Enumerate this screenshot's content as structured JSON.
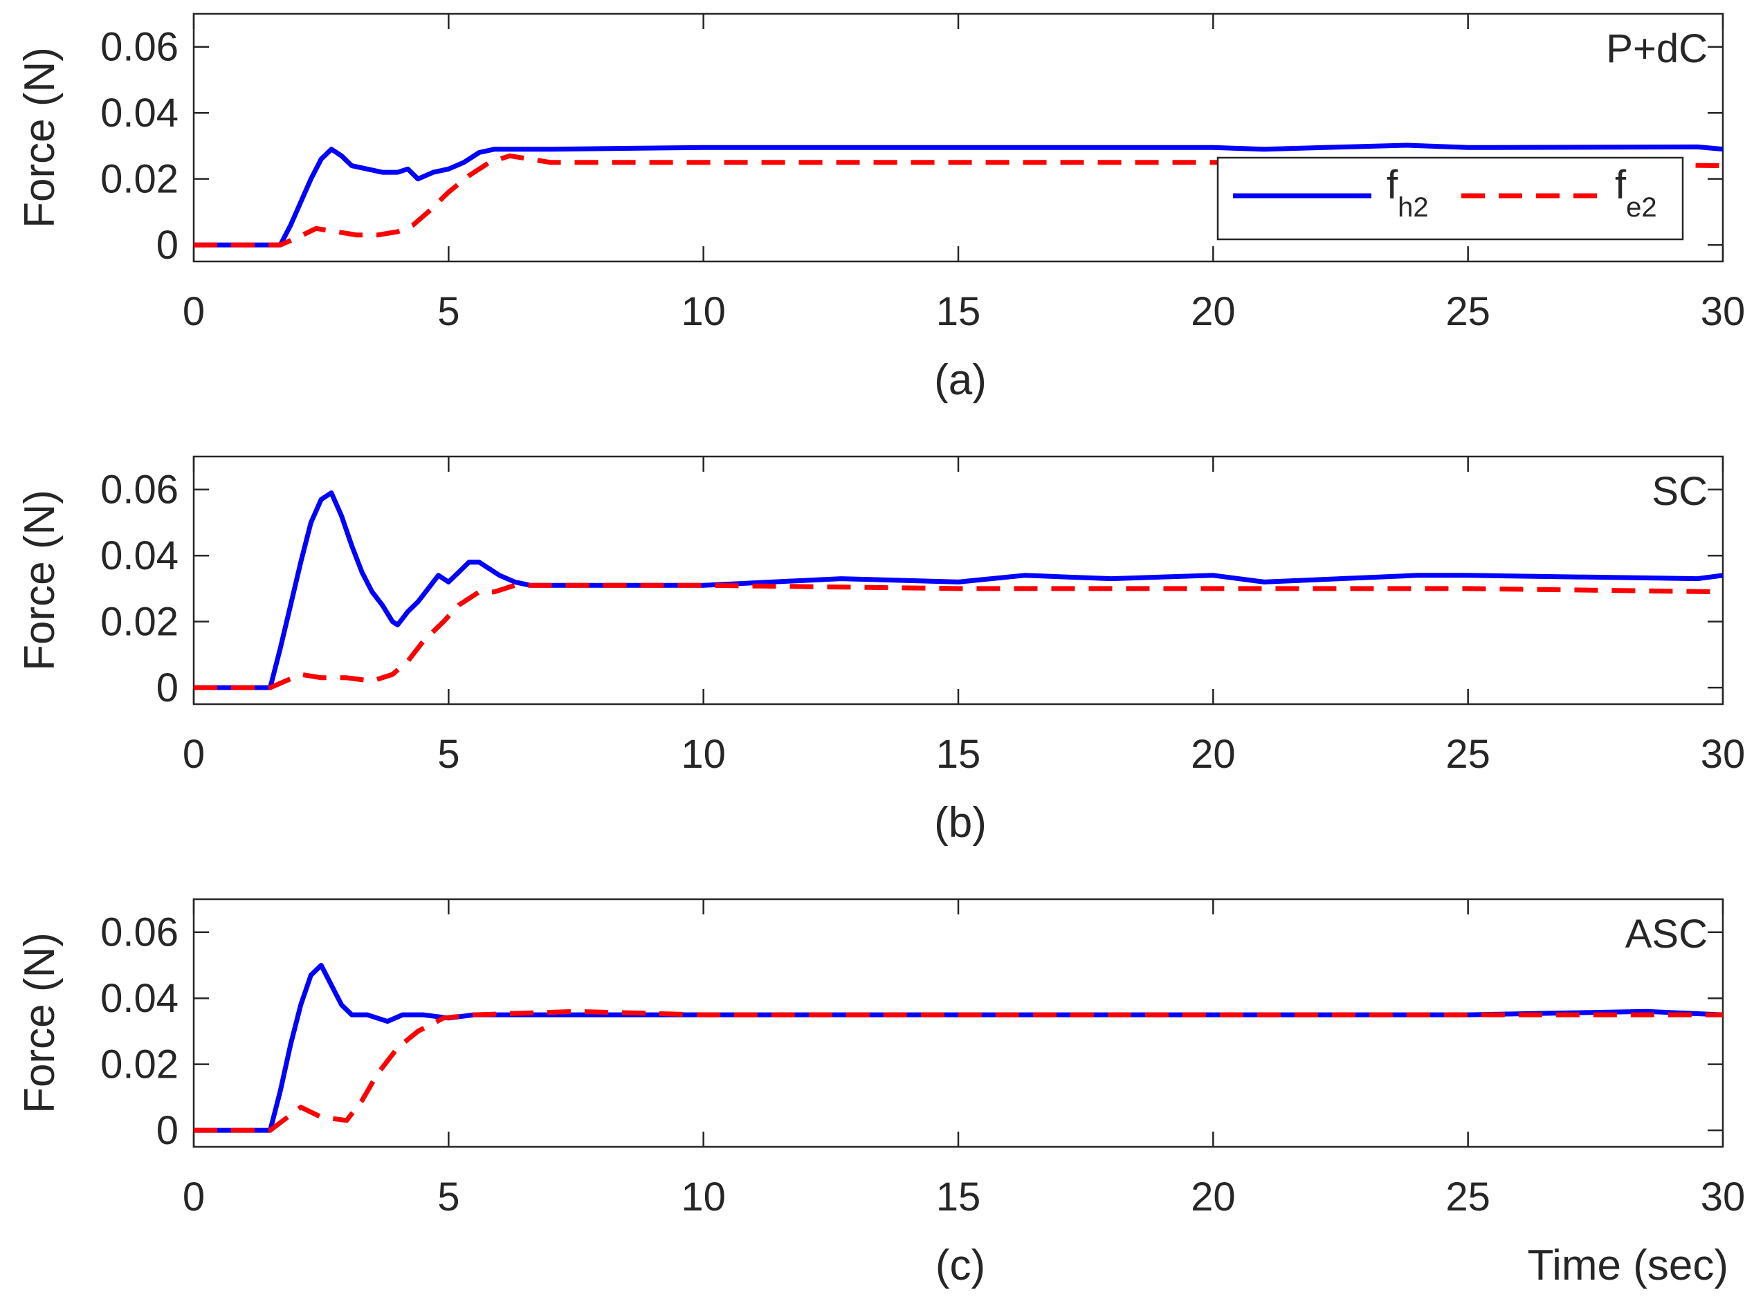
{
  "chart_data": [
    {
      "type": "line",
      "title": "P+dC",
      "caption": "(a)",
      "ylabel": "Force (N)",
      "xlabel": "",
      "xlim": [
        0,
        30
      ],
      "ylim": [
        -0.005,
        0.07
      ],
      "xticks": [
        "0",
        "5",
        "10",
        "15",
        "20",
        "25",
        "30"
      ],
      "yticks": [
        "0",
        "0.02",
        "0.04",
        "0.06"
      ],
      "grid": false,
      "legend": {
        "position": "lower-right",
        "entries": [
          {
            "base": "f",
            "sub": "h2"
          },
          {
            "base": "f",
            "sub": "e2"
          }
        ]
      },
      "series": [
        {
          "name": "fh2",
          "color": "#0000FF",
          "style": "solid",
          "x": [
            0,
            1.7,
            1.9,
            2.1,
            2.3,
            2.5,
            2.7,
            2.9,
            3.1,
            3.4,
            3.7,
            4.0,
            4.2,
            4.4,
            4.7,
            5.0,
            5.3,
            5.6,
            5.9,
            6.2,
            7,
            10,
            15,
            20,
            21,
            23.8,
            25,
            29.5,
            30
          ],
          "y": [
            0,
            0,
            0.006,
            0.013,
            0.02,
            0.026,
            0.029,
            0.027,
            0.024,
            0.023,
            0.022,
            0.022,
            0.023,
            0.02,
            0.022,
            0.023,
            0.025,
            0.028,
            0.029,
            0.029,
            0.029,
            0.0295,
            0.0295,
            0.0295,
            0.029,
            0.0302,
            0.0295,
            0.0297,
            0.029
          ]
        },
        {
          "name": "fe2",
          "color": "#FF0000",
          "style": "dashed",
          "x": [
            0,
            1.7,
            2.0,
            2.4,
            2.8,
            3.2,
            3.6,
            4.0,
            4.3,
            4.6,
            5.0,
            5.4,
            5.8,
            6.2,
            7,
            10,
            15,
            20,
            25,
            30
          ],
          "y": [
            0,
            0,
            0.002,
            0.005,
            0.004,
            0.003,
            0.003,
            0.004,
            0.006,
            0.01,
            0.016,
            0.021,
            0.025,
            0.027,
            0.025,
            0.025,
            0.025,
            0.025,
            0.025,
            0.024
          ]
        }
      ]
    },
    {
      "type": "line",
      "title": "SC",
      "caption": "(b)",
      "ylabel": "Force (N)",
      "xlabel": "",
      "xlim": [
        0,
        30
      ],
      "ylim": [
        -0.005,
        0.07
      ],
      "xticks": [
        "0",
        "5",
        "10",
        "15",
        "20",
        "25",
        "30"
      ],
      "yticks": [
        "0",
        "0.02",
        "0.04",
        "0.06"
      ],
      "grid": false,
      "series": [
        {
          "name": "fh2",
          "color": "#0000FF",
          "style": "solid",
          "x": [
            0,
            1.5,
            1.7,
            1.9,
            2.1,
            2.3,
            2.5,
            2.7,
            2.9,
            3.1,
            3.3,
            3.5,
            3.7,
            3.9,
            4.0,
            4.2,
            4.4,
            4.6,
            4.8,
            5.0,
            5.2,
            5.4,
            5.6,
            5.8,
            6.0,
            6.3,
            6.6,
            7,
            10,
            12.7,
            15,
            16.3,
            18,
            20,
            21,
            24,
            25,
            29.5,
            30
          ],
          "y": [
            0,
            0,
            0.012,
            0.025,
            0.038,
            0.05,
            0.057,
            0.059,
            0.052,
            0.043,
            0.035,
            0.029,
            0.025,
            0.02,
            0.019,
            0.023,
            0.026,
            0.03,
            0.034,
            0.032,
            0.035,
            0.038,
            0.038,
            0.036,
            0.034,
            0.032,
            0.031,
            0.031,
            0.031,
            0.033,
            0.032,
            0.034,
            0.033,
            0.034,
            0.032,
            0.034,
            0.034,
            0.033,
            0.034
          ]
        },
        {
          "name": "fe2",
          "color": "#FF0000",
          "style": "dashed",
          "x": [
            0,
            1.5,
            2.1,
            2.5,
            3.0,
            3.5,
            3.9,
            4.2,
            4.5,
            4.9,
            5.2,
            5.6,
            5.9,
            6.3,
            7,
            10,
            15,
            20,
            25,
            30
          ],
          "y": [
            0,
            0,
            0.004,
            0.003,
            0.003,
            0.002,
            0.004,
            0.008,
            0.014,
            0.02,
            0.025,
            0.029,
            0.029,
            0.031,
            0.031,
            0.031,
            0.03,
            0.03,
            0.03,
            0.029
          ]
        }
      ]
    },
    {
      "type": "line",
      "title": "ASC",
      "caption": "(c)",
      "ylabel": "Force (N)",
      "xlabel": "Time (sec)",
      "xlim": [
        0,
        30
      ],
      "ylim": [
        -0.005,
        0.07
      ],
      "xticks": [
        "0",
        "5",
        "10",
        "15",
        "20",
        "25",
        "30"
      ],
      "yticks": [
        "0",
        "0.02",
        "0.04",
        "0.06"
      ],
      "grid": false,
      "series": [
        {
          "name": "fh2",
          "color": "#0000FF",
          "style": "solid",
          "x": [
            0,
            1.5,
            1.7,
            1.9,
            2.1,
            2.3,
            2.5,
            2.7,
            2.9,
            3.1,
            3.4,
            3.8,
            4.1,
            4.5,
            5.0,
            5.5,
            7,
            10,
            15,
            20,
            23.5,
            25,
            28.5,
            30
          ],
          "y": [
            0,
            0,
            0.012,
            0.026,
            0.038,
            0.047,
            0.05,
            0.044,
            0.038,
            0.035,
            0.035,
            0.033,
            0.035,
            0.035,
            0.034,
            0.035,
            0.035,
            0.035,
            0.035,
            0.035,
            0.035,
            0.035,
            0.036,
            0.035
          ]
        },
        {
          "name": "fe2",
          "color": "#FF0000",
          "style": "dashed",
          "x": [
            0,
            1.5,
            2.1,
            2.5,
            3.0,
            3.3,
            3.6,
            4.0,
            4.4,
            4.9,
            5.5,
            7.5,
            10,
            15,
            20,
            25,
            30
          ],
          "y": [
            0,
            0,
            0.007,
            0.004,
            0.003,
            0.009,
            0.017,
            0.025,
            0.03,
            0.034,
            0.035,
            0.036,
            0.035,
            0.035,
            0.035,
            0.035,
            0.035
          ]
        }
      ]
    }
  ]
}
